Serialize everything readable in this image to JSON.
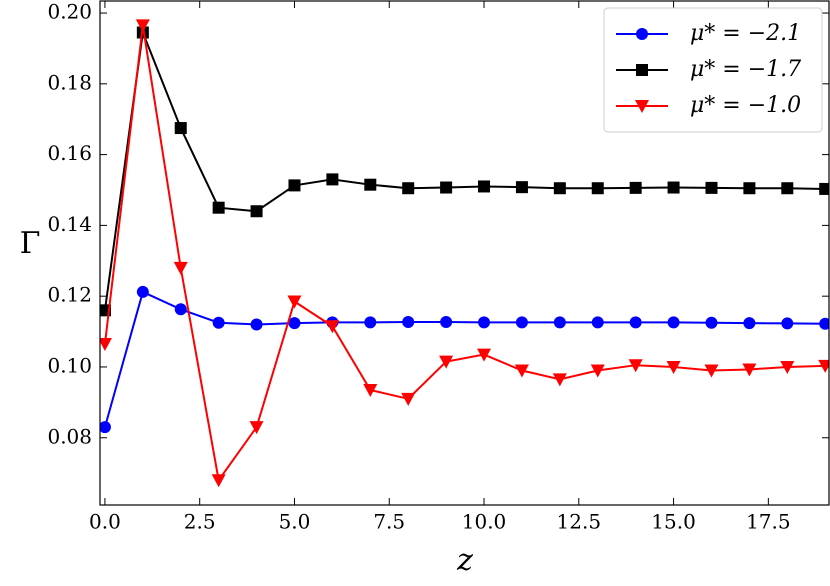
{
  "chart_data": {
    "type": "line",
    "x_label": "z",
    "y_label": "Γ",
    "x": [
      0,
      1,
      2,
      3,
      4,
      5,
      6,
      7,
      8,
      9,
      10,
      11,
      12,
      13,
      14,
      15,
      16,
      17,
      18,
      19
    ],
    "series": [
      {
        "name": "μ* = −2.1",
        "color": "#0000ff",
        "marker": "circle",
        "values": [
          0.083,
          0.1212,
          0.1163,
          0.1125,
          0.112,
          0.1124,
          0.1126,
          0.1126,
          0.1127,
          0.1127,
          0.1126,
          0.1126,
          0.1126,
          0.1126,
          0.1126,
          0.1126,
          0.1125,
          0.1124,
          0.1123,
          0.1122
        ]
      },
      {
        "name": "μ* = −1.7",
        "color": "#000000",
        "marker": "square",
        "values": [
          0.116,
          0.1945,
          0.1675,
          0.145,
          0.144,
          0.1513,
          0.153,
          0.1515,
          0.1505,
          0.1507,
          0.151,
          0.1508,
          0.1505,
          0.1505,
          0.1506,
          0.1507,
          0.1506,
          0.1505,
          0.1505,
          0.1503
        ]
      },
      {
        "name": "μ* = −1.0",
        "color": "#ff0000",
        "marker": "triangle-down",
        "values": [
          0.1065,
          0.1965,
          0.128,
          0.068,
          0.083,
          0.1185,
          0.1115,
          0.0935,
          0.091,
          0.1015,
          0.1035,
          0.099,
          0.0965,
          0.099,
          0.1005,
          0.1,
          0.099,
          0.0993,
          0.1,
          0.1003
        ]
      }
    ],
    "xlim": [
      -0.13,
      19.1
    ],
    "ylim": [
      0.061,
      0.2034
    ],
    "xticks": [
      {
        "value": 0,
        "label": "0.0"
      },
      {
        "value": 2.5,
        "label": "2.5"
      },
      {
        "value": 5,
        "label": "5.0"
      },
      {
        "value": 7.5,
        "label": "7.5"
      },
      {
        "value": 10,
        "label": "10.0"
      },
      {
        "value": 12.5,
        "label": "12.5"
      },
      {
        "value": 15,
        "label": "15.0"
      },
      {
        "value": 17.5,
        "label": "17.5"
      }
    ],
    "yticks": [
      {
        "value": 0.08,
        "label": "0.08"
      },
      {
        "value": 0.1,
        "label": "0.10"
      },
      {
        "value": 0.12,
        "label": "0.12"
      },
      {
        "value": 0.14,
        "label": "0.14"
      },
      {
        "value": 0.16,
        "label": "0.16"
      },
      {
        "value": 0.18,
        "label": "0.18"
      },
      {
        "value": 0.2,
        "label": "0.20"
      }
    ],
    "legend": "upper right",
    "grid": false
  }
}
